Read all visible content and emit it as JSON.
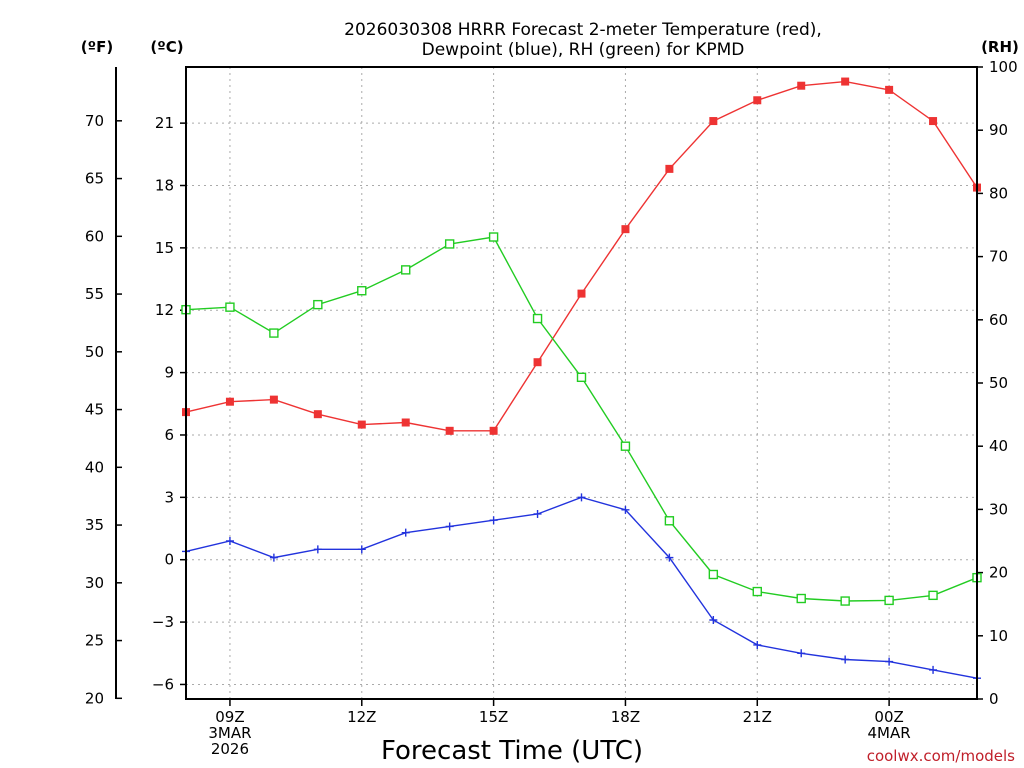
{
  "colors": {
    "temperature": "#ee3333",
    "dewpoint": "#2233dd",
    "rh": "#22cc22",
    "grid": "#aaaaaa",
    "credit": "#c0202a"
  },
  "header": {
    "title_line1": "2026030308 HRRR Forecast 2-meter Temperature (red),",
    "title_line2": "Dewpoint (blue), RH (green) for KPMD"
  },
  "axes": {
    "f_unit": "(ºF)",
    "c_unit": "(ºC)",
    "rh_unit": "(RH)",
    "x_title": "Forecast Time (UTC)"
  },
  "footer": {
    "credit": "coolwx.com/models"
  },
  "chart_data": {
    "type": "line",
    "title": "2026030308 HRRR Forecast 2-meter Temperature (red), Dewpoint (blue), RH (green) for KPMD",
    "xlabel": "Forecast Time (UTC)",
    "x": [
      8,
      9,
      10,
      11,
      12,
      13,
      14,
      15,
      16,
      17,
      18,
      19,
      20,
      21,
      22,
      23,
      24,
      25,
      26
    ],
    "xlim": [
      8,
      26
    ],
    "x_ticks": [
      {
        "x": 9,
        "lines": [
          "09Z",
          "3MAR",
          "2026"
        ]
      },
      {
        "x": 12,
        "lines": [
          "12Z"
        ]
      },
      {
        "x": 15,
        "lines": [
          "15Z"
        ]
      },
      {
        "x": 18,
        "lines": [
          "18Z"
        ]
      },
      {
        "x": 21,
        "lines": [
          "21Z"
        ]
      },
      {
        "x": 24,
        "lines": [
          "00Z",
          "4MAR"
        ]
      }
    ],
    "y_left_c": {
      "label": "(ºC)",
      "ticks": [
        -6,
        -3,
        0,
        3,
        6,
        9,
        12,
        15,
        18,
        21
      ]
    },
    "y_left_f": {
      "label": "(ºF)",
      "ticks": [
        20,
        25,
        30,
        35,
        40,
        45,
        50,
        55,
        60,
        65,
        70
      ]
    },
    "y_right_rh": {
      "label": "(RH)",
      "ylim": [
        0,
        100
      ],
      "ticks": [
        0,
        10,
        20,
        30,
        40,
        50,
        60,
        70,
        80,
        90,
        100
      ]
    },
    "ylim_c": [
      -6.7,
      23.7
    ],
    "series": [
      {
        "name": "Temperature",
        "axis": "c",
        "color": "#ee3333",
        "marker": "filled-square",
        "values": [
          7.1,
          7.6,
          7.7,
          7.0,
          6.5,
          6.6,
          6.2,
          6.2,
          9.5,
          12.8,
          15.9,
          18.8,
          21.1,
          22.1,
          22.8,
          23.0,
          22.6,
          21.1,
          17.9
        ]
      },
      {
        "name": "Dewpoint",
        "axis": "c",
        "color": "#2233dd",
        "marker": "plus",
        "values": [
          0.4,
          0.9,
          0.1,
          0.5,
          0.5,
          1.3,
          1.6,
          1.9,
          2.2,
          3.0,
          2.4,
          0.1,
          -2.9,
          -4.1,
          -4.5,
          -4.8,
          -4.9,
          -5.3,
          -5.7
        ]
      },
      {
        "name": "RH",
        "axis": "rh",
        "color": "#22cc22",
        "marker": "open-square",
        "values": [
          61.6,
          62.0,
          57.9,
          62.4,
          64.6,
          67.9,
          72.0,
          73.1,
          60.2,
          50.9,
          40.0,
          28.2,
          19.7,
          17.0,
          15.9,
          15.5,
          15.6,
          16.4,
          19.2
        ]
      }
    ]
  }
}
